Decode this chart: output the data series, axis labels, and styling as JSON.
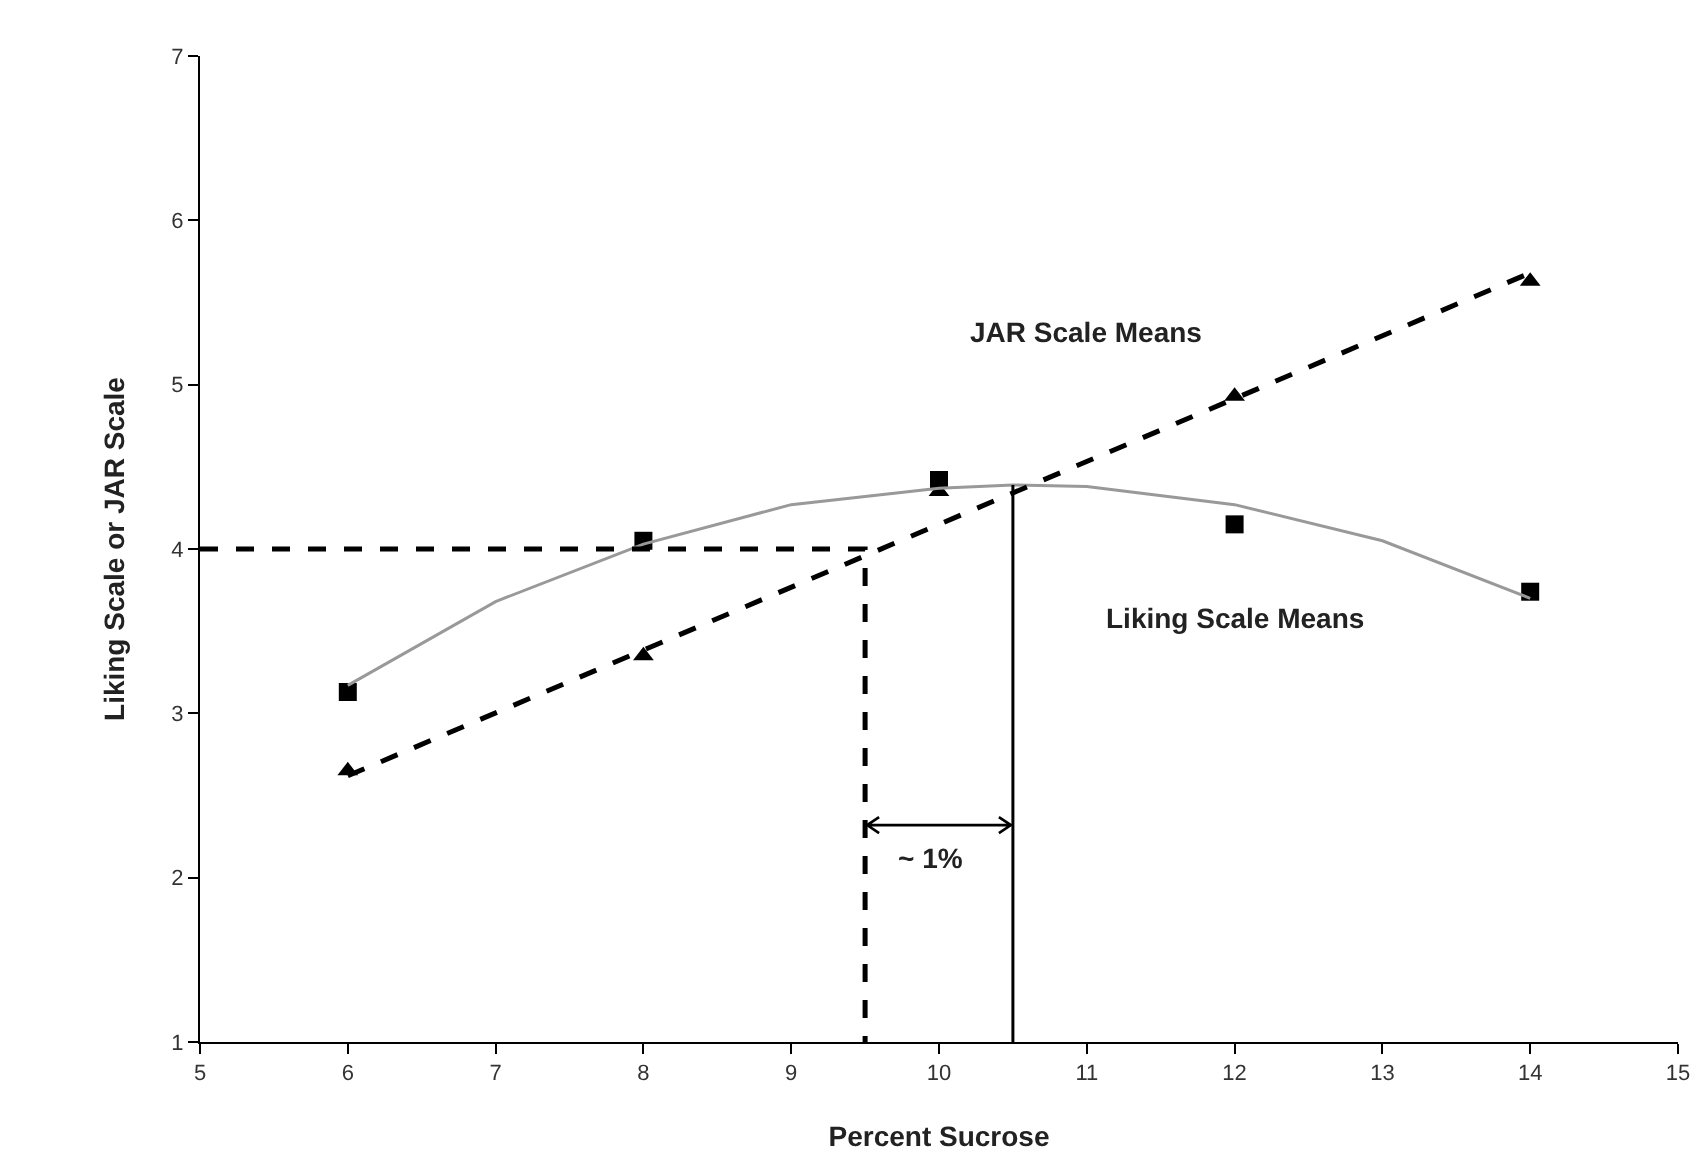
{
  "chart_data": {
    "type": "scatter",
    "xlabel": "Percent Sucrose",
    "ylabel": "Liking Scale or JAR Scale",
    "xlim": [
      5,
      15
    ],
    "xticks": [
      5,
      6,
      7,
      8,
      9,
      10,
      11,
      12,
      13,
      14,
      15
    ],
    "ylim": [
      1,
      7
    ],
    "yticks": [
      1,
      2,
      3,
      4,
      5,
      6,
      7
    ],
    "grid": false,
    "series": [
      {
        "color": "#000000",
        "marker": "square",
        "x": [
          6,
          8,
          10,
          12,
          14
        ],
        "values": [
          3.13,
          4.05,
          4.42,
          4.15,
          3.74
        ]
      },
      {
        "color": "#000000",
        "marker": "triangle",
        "x": [
          6,
          8,
          10,
          12,
          14
        ],
        "values": [
          2.65,
          3.35,
          4.35,
          4.93,
          5.63
        ]
      },
      {
        "type": "line",
        "color": "#999999",
        "line_style": "solid",
        "x": [
          6,
          7,
          8,
          9,
          10,
          10.5,
          11,
          12,
          13,
          14
        ],
        "values": [
          3.17,
          3.68,
          4.03,
          4.27,
          4.37,
          4.39,
          4.38,
          4.27,
          4.05,
          3.7
        ]
      },
      {
        "type": "line",
        "color": "#000000",
        "line_style": "dashed",
        "x": [
          6,
          14
        ],
        "values": [
          2.62,
          5.68
        ]
      },
      {
        "type": "line",
        "color": "#000000",
        "line_style": "dashed",
        "x": [
          5,
          9.5,
          9.5
        ],
        "values": [
          4,
          4,
          1
        ]
      },
      {
        "type": "line",
        "color": "#000000",
        "line_style": "solid",
        "x": [
          10.5,
          10.5
        ],
        "values": [
          4.39,
          1
        ]
      }
    ],
    "annotations": [
      "JAR Scale Means",
      "Liking Scale Means",
      {
        "text": "~ 1%",
        "x": 10.5,
        "y": 2.32
      }
    ]
  }
}
